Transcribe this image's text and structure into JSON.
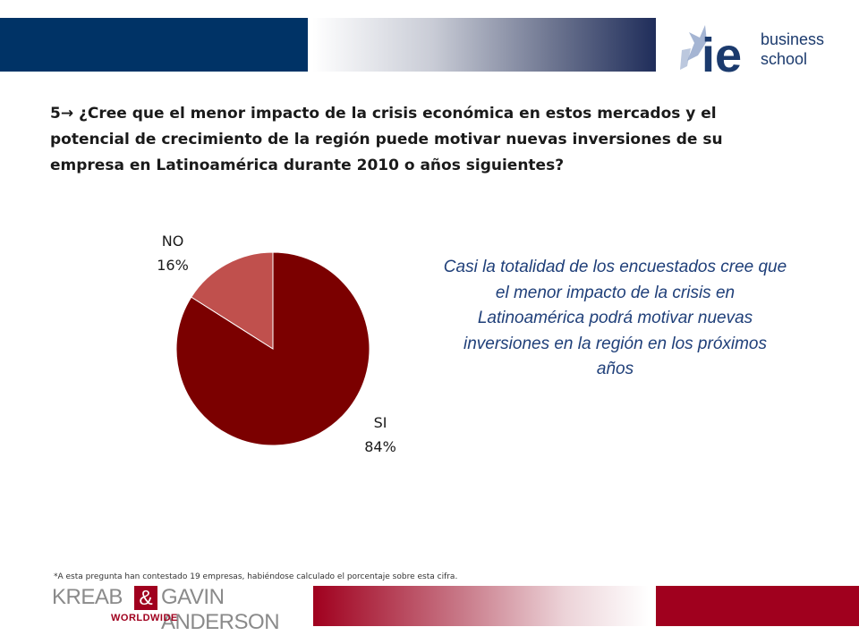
{
  "header": {
    "logo_text_line1": "business",
    "logo_text_line2": "school",
    "logo_monogram": "ie"
  },
  "title": "5→ ¿Cree que el menor impacto de la crisis económica en estos mercados y el potencial de crecimiento de la región puede motivar nuevas inversiones de su empresa en Latinoamérica durante 2010 o años siguientes?",
  "chart_data": {
    "type": "pie",
    "title": "",
    "labels": [
      "SI",
      "NO"
    ],
    "values": [
      84,
      16
    ],
    "value_labels": [
      "84%",
      "16%"
    ],
    "unit": "%",
    "colors": [
      "#7b0000",
      "#c0504d"
    ],
    "legend": "none"
  },
  "commentary": "Casi la totalidad de los encuestados cree que el menor impacto de la crisis en Latinoamérica podrá motivar nuevas inversiones en la región en los próximos años",
  "footnote": "*A esta pregunta han contestado 19 empresas, habiéndose calculado el porcentaje sobre esta cifra.",
  "footer": {
    "logo_word1": "KREAB",
    "logo_amp": "&",
    "logo_word2": "GAVIN ANDERSON",
    "logo_sub": "WORLDWIDE"
  },
  "colors": {
    "navy": "#003366",
    "accent_red": "#a0001e",
    "commentary_blue": "#1f3f79"
  }
}
